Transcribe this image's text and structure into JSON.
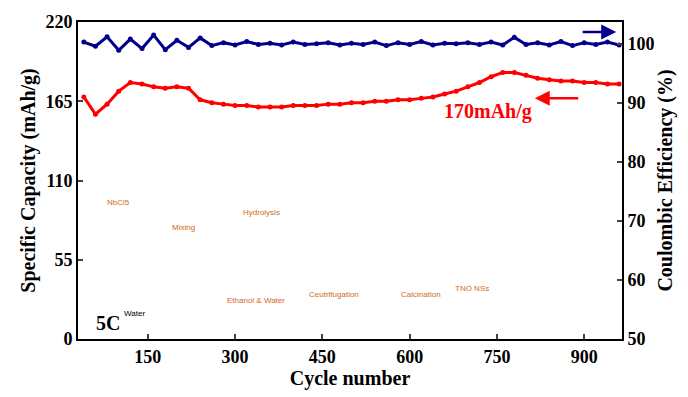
{
  "chart_data": {
    "type": "line",
    "x_label": "Cycle number",
    "y_label": "Specific Capacity (mAh/g)",
    "y2_label": "Coulombic Efficiency (%)",
    "annotations": [
      "170mAh/g",
      "5C"
    ],
    "inset_labels": [
      "NbCl5",
      "Mixing",
      "Water",
      "Hydrolysis",
      "Ethanol & Water",
      "Ceutrifugation",
      "Calcination",
      "TNO NSs"
    ],
    "x": [
      40,
      60,
      80,
      100,
      120,
      140,
      160,
      180,
      200,
      220,
      240,
      260,
      280,
      300,
      320,
      340,
      360,
      380,
      400,
      420,
      440,
      460,
      480,
      500,
      520,
      540,
      560,
      580,
      600,
      620,
      640,
      660,
      680,
      700,
      720,
      740,
      760,
      780,
      800,
      820,
      840,
      860,
      880,
      900,
      920,
      940,
      960
    ],
    "series": [
      {
        "name": "Specific Capacity",
        "color": "#ff0000",
        "marker": "circle",
        "values": [
          168,
          156,
          163,
          172,
          178,
          177,
          175,
          174,
          175,
          174,
          166,
          164,
          163,
          162,
          162,
          161,
          161,
          161,
          162,
          162,
          162,
          163,
          163,
          164,
          164,
          165,
          165,
          166,
          166,
          167,
          168,
          170,
          172,
          175,
          178,
          182,
          185,
          185,
          183,
          181,
          180,
          179,
          179,
          178,
          178,
          177,
          177
        ]
      },
      {
        "name": "Coulombic Efficiency",
        "color": "#00008b",
        "marker": "circle",
        "axis": "y2",
        "values": [
          100.3,
          99.6,
          101.2,
          98.9,
          100.8,
          99.2,
          101.5,
          99.0,
          100.6,
          99.4,
          101.0,
          99.7,
          100.2,
          99.8,
          100.4,
          99.9,
          100.1,
          99.8,
          100.3,
          99.9,
          100.0,
          100.2,
          99.8,
          100.1,
          99.9,
          100.3,
          99.7,
          100.2,
          99.9,
          100.4,
          99.8,
          100.1,
          100.0,
          100.2,
          99.9,
          100.3,
          99.8,
          101.1,
          99.9,
          100.2,
          99.8,
          100.4,
          99.7,
          100.2,
          99.9,
          100.3,
          99.8
        ]
      }
    ],
    "xlim": [
      30,
      965
    ],
    "xticks": [
      150,
      300,
      450,
      600,
      750,
      900
    ],
    "ylim": [
      0,
      220
    ],
    "yticks": [
      0,
      55,
      110,
      165,
      220
    ],
    "y2lim": [
      50,
      103.7
    ],
    "y2ticks": [
      50,
      60,
      70,
      80,
      90,
      100
    ],
    "grid": false
  }
}
